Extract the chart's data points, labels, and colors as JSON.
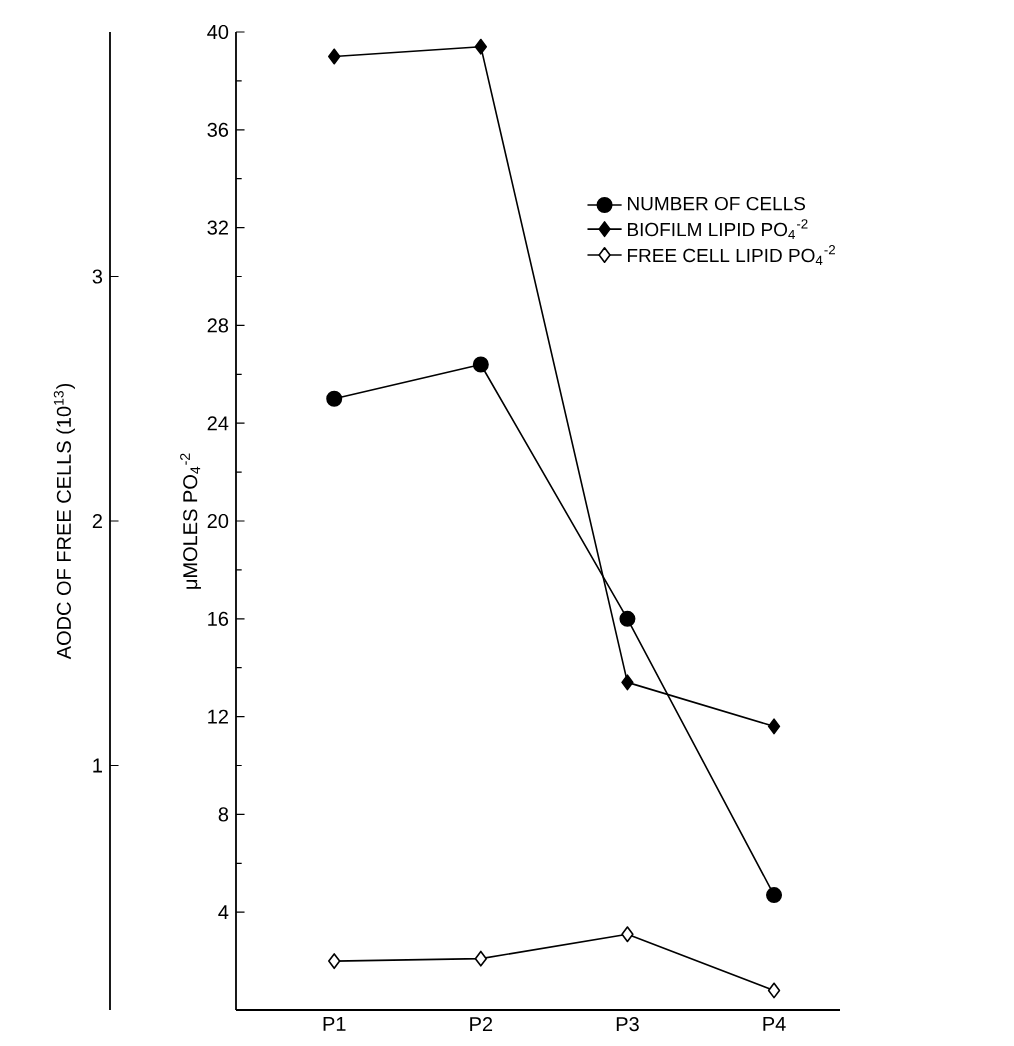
{
  "chart_data": {
    "type": "line",
    "categories": [
      "P1",
      "P2",
      "P3",
      "P4"
    ],
    "ylabel": "μMOLES PO$_{4}$$^{-2}$",
    "y2label": "AODC OF FREE CELLS (10$^{13}$)",
    "ylim": [
      0,
      40
    ],
    "yticks": [
      4,
      8,
      12,
      16,
      20,
      24,
      28,
      32,
      36,
      40
    ],
    "y2lim": [
      0,
      4
    ],
    "y2ticks": [
      1,
      2,
      3
    ],
    "legend": "right",
    "grid": false,
    "series": [
      {
        "name": "NUMBER OF CELLS",
        "color": "#000000",
        "marker": "circle",
        "axis": "y2",
        "values": [
          2.5,
          2.64,
          1.6,
          0.47
        ]
      },
      {
        "name": "BIOFILM LIPID PO$_{4}$$^{-2}$",
        "color": "#000000",
        "marker": "diamond",
        "values": [
          39.0,
          39.4,
          13.4,
          11.6
        ]
      },
      {
        "name": "FREE CELL LIPID PO$_{4}$$^{-2}$",
        "color": "#000000",
        "marker": "diamond",
        "colors": [
          "#ffffff",
          "#ffffff",
          "#ffffff",
          "#ffffff"
        ],
        "values": [
          2.0,
          2.1,
          3.1,
          0.8
        ]
      }
    ]
  }
}
